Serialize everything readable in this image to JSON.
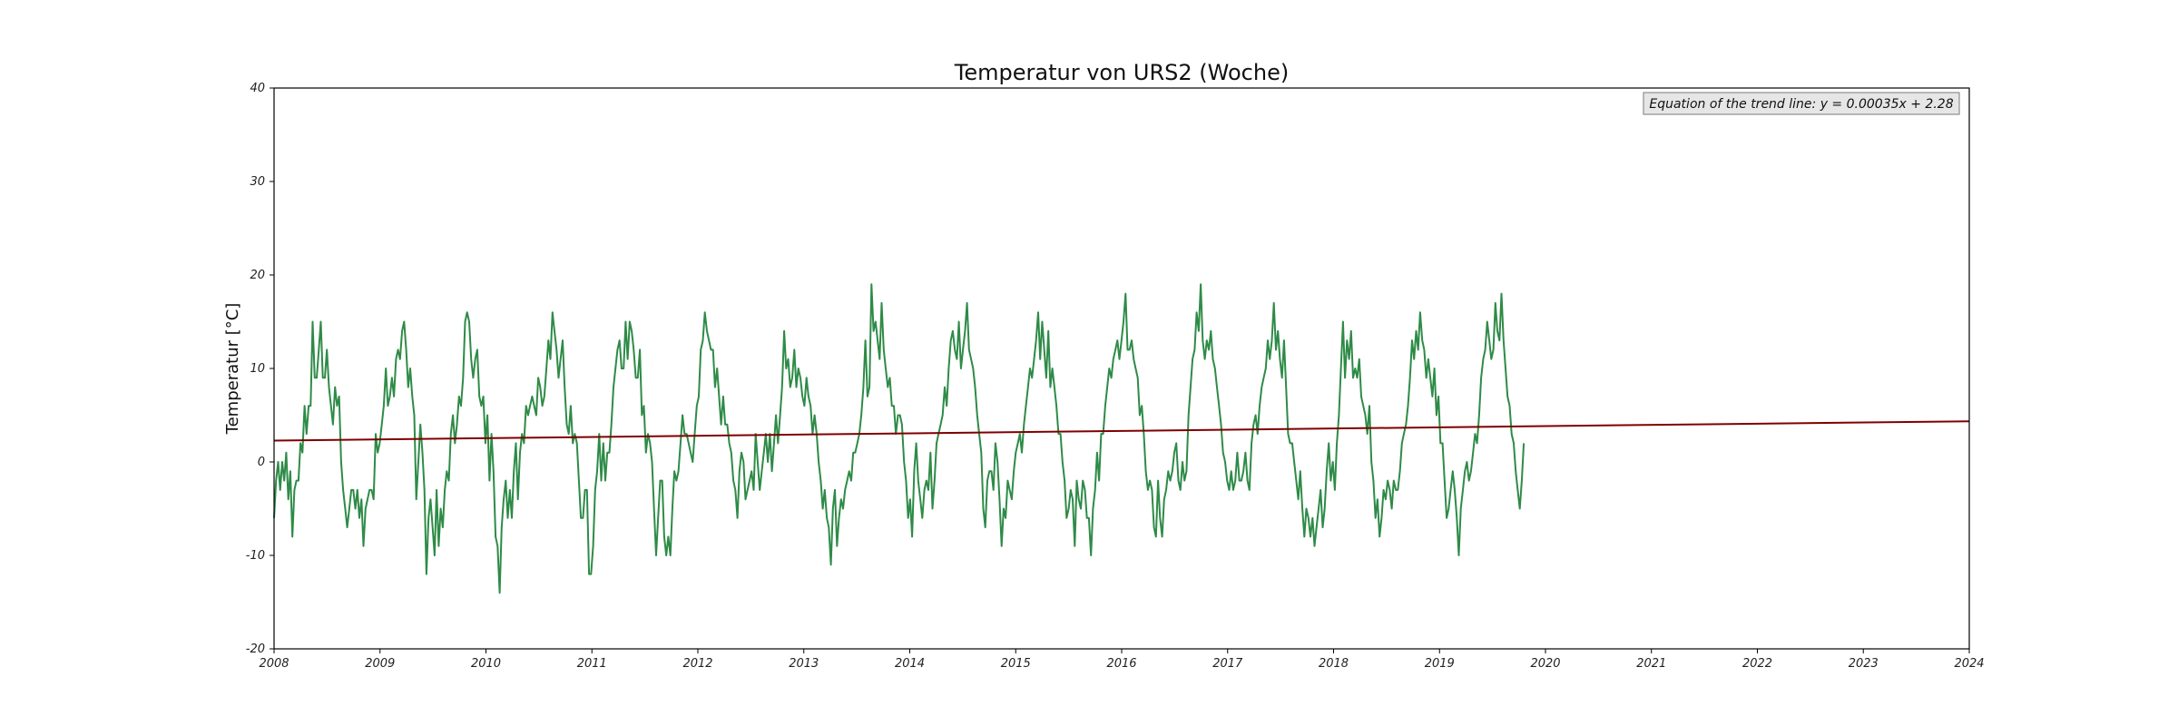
{
  "chart_data": {
    "type": "line",
    "title": "Temperatur von URS2 (Woche)",
    "xlabel": "",
    "ylabel": "Temperatur [°C]",
    "xlim": [
      2008,
      2024
    ],
    "ylim": [
      -20,
      40
    ],
    "xticks": [
      "2008",
      "2009",
      "2010",
      "2011",
      "2012",
      "2013",
      "2014",
      "2015",
      "2016",
      "2017",
      "2018",
      "2019",
      "2020",
      "2021",
      "2022",
      "2023",
      "2024"
    ],
    "yticks": [
      "-20",
      "-10",
      "0",
      "10",
      "20",
      "30",
      "40"
    ],
    "grid": false,
    "annotation": "Equation of the trend line: y = 0.00035x + 2.28",
    "series": [
      {
        "color": "#2e8b47",
        "x_start": 2008.0,
        "x_step": 0.01918,
        "values": [
          -6,
          -2,
          0,
          -3,
          0,
          -2,
          1,
          -4,
          -1,
          -8,
          -3,
          -2,
          -2,
          2,
          1,
          6,
          3,
          6,
          6,
          15,
          9,
          9,
          12,
          15,
          9,
          9,
          12,
          8,
          6,
          4,
          8,
          6,
          7,
          0,
          -3,
          -5,
          -7,
          -5,
          -3,
          -3,
          -5,
          -3,
          -6,
          -4,
          -9,
          -5,
          -4,
          -3,
          -3,
          -4,
          3,
          1,
          2,
          4,
          6,
          10,
          6,
          7,
          9,
          7,
          11,
          12,
          11,
          14,
          15,
          12,
          8,
          10,
          7,
          5,
          -4,
          0,
          4,
          1,
          -3,
          -12,
          -6,
          -4,
          -7,
          -10,
          -3,
          -9,
          -5,
          -7,
          -3,
          -1,
          -2,
          3,
          5,
          2,
          4,
          7,
          6,
          9,
          15,
          16,
          15,
          11,
          9,
          11,
          12,
          7,
          6,
          7,
          2,
          5,
          -2,
          3,
          -1,
          -8,
          -9,
          -14,
          -7,
          -4,
          -2,
          -6,
          -3,
          -6,
          -1,
          2,
          -4,
          1,
          3,
          2,
          6,
          5,
          6,
          7,
          6,
          5,
          9,
          8,
          6,
          7,
          10,
          13,
          11,
          16,
          14,
          12,
          9,
          11,
          13,
          8,
          4,
          3,
          6,
          2,
          3,
          2,
          -2,
          -6,
          -6,
          -3,
          -3,
          -12,
          -12,
          -9,
          -3,
          -1,
          3,
          -2,
          2,
          -2,
          1,
          1,
          4,
          8,
          10,
          12,
          13,
          10,
          10,
          15,
          11,
          15,
          14,
          12,
          9,
          9,
          12,
          5,
          6,
          1,
          3,
          2,
          0,
          -5,
          -10,
          -6,
          -2,
          -2,
          -8,
          -10,
          -8,
          -10,
          -5,
          -1,
          -2,
          -1,
          2,
          5,
          3,
          3,
          2,
          1,
          0,
          3,
          6,
          7,
          12,
          13,
          16,
          14,
          13,
          12,
          12,
          8,
          10,
          7,
          4,
          7,
          4,
          4,
          2,
          1,
          -2,
          -3,
          -6,
          -1,
          1,
          0,
          -4,
          -3,
          -2,
          -1,
          -3,
          3,
          0,
          -3,
          -1,
          1,
          3,
          0,
          3,
          -1,
          2,
          5,
          2,
          5,
          8,
          14,
          10,
          11,
          8,
          9,
          12,
          8,
          10,
          9,
          7,
          6,
          9,
          7,
          6,
          3,
          5,
          3,
          0,
          -2,
          -5,
          -3,
          -6,
          -7,
          -11,
          -5,
          -3,
          -9,
          -6,
          -4,
          -5,
          -3,
          -2,
          -1,
          -2,
          1,
          1,
          2,
          3,
          5,
          8,
          13,
          7,
          8,
          19,
          14,
          15,
          13,
          11,
          17,
          12,
          10,
          8,
          9,
          6,
          6,
          3,
          5,
          5,
          4,
          0,
          -2,
          -6,
          -4,
          -8,
          -1,
          2,
          -2,
          -4,
          -6,
          -3,
          -2,
          -3,
          1,
          -5,
          -2,
          2,
          3,
          4,
          5,
          8,
          6,
          10,
          13,
          14,
          12,
          11,
          15,
          10,
          12,
          14,
          17,
          12,
          11,
          10,
          8,
          5,
          3,
          1,
          -5,
          -7,
          -2,
          -1,
          -1,
          -3,
          2,
          0,
          -4,
          -9,
          -5,
          -6,
          -2,
          -3,
          -4,
          -1,
          1,
          2,
          3,
          1,
          4,
          6,
          8,
          10,
          9,
          11,
          13,
          16,
          11,
          15,
          12,
          9,
          14,
          8,
          10,
          8,
          6,
          3,
          3,
          0,
          -2,
          -6,
          -5,
          -3,
          -4,
          -9,
          -2,
          -4,
          -5,
          -2,
          -3,
          -6,
          -6,
          -10,
          -5,
          -3,
          1,
          -2,
          3,
          3,
          6,
          8,
          10,
          9,
          11,
          12,
          13,
          11,
          13,
          15,
          18,
          12,
          12,
          13,
          11,
          10,
          9,
          5,
          6,
          3,
          -1,
          -3,
          -2,
          -3,
          -7,
          -8,
          -2,
          -6,
          -8,
          -4,
          -3,
          -1,
          -2,
          -1,
          1,
          2,
          -2,
          -3,
          0,
          -2,
          -1,
          5,
          8,
          11,
          12,
          16,
          14,
          19,
          13,
          11,
          13,
          12,
          14,
          11,
          10,
          8,
          6,
          4,
          1,
          0,
          -2,
          -3,
          -1,
          -3,
          -2,
          1,
          -2,
          -2,
          -1,
          1,
          -2,
          -3,
          2,
          4,
          5,
          3,
          6,
          8,
          9,
          10,
          13,
          11,
          13,
          17,
          12,
          14,
          11,
          9,
          13,
          8,
          3,
          2,
          2,
          0,
          -2,
          -4,
          -1,
          -5,
          -8,
          -5,
          -6,
          -8,
          -6,
          -9,
          -7,
          -5,
          -3,
          -7,
          -5,
          -1,
          2,
          -2,
          0,
          -3,
          2,
          5,
          10,
          15,
          9,
          13,
          11,
          14,
          9,
          10,
          9,
          11,
          7,
          6,
          5,
          3,
          6,
          0,
          -2,
          -6,
          -4,
          -8,
          -6,
          -3,
          -4,
          -2,
          -3,
          -5,
          -2,
          -3,
          -3,
          -1,
          2,
          3,
          4,
          6,
          9,
          13,
          11,
          14,
          12,
          16,
          13,
          12,
          9,
          11,
          9,
          7,
          10,
          5,
          7,
          2,
          2,
          -2,
          -6,
          -5,
          -3,
          -1,
          -3,
          -6,
          -10,
          -5,
          -3,
          -1,
          0,
          -2,
          -1,
          1,
          3,
          2,
          5,
          9,
          11,
          12,
          15,
          13,
          11,
          12,
          17,
          14,
          13,
          18,
          13,
          10,
          7,
          6,
          3,
          2,
          -1,
          -3,
          -5,
          -2,
          2
        ]
      },
      {
        "name": "",
        "color": "#7f0000",
        "type": "trend",
        "x": [
          2008,
          2024
        ],
        "values": [
          2.28,
          4.35
        ]
      }
    ]
  }
}
